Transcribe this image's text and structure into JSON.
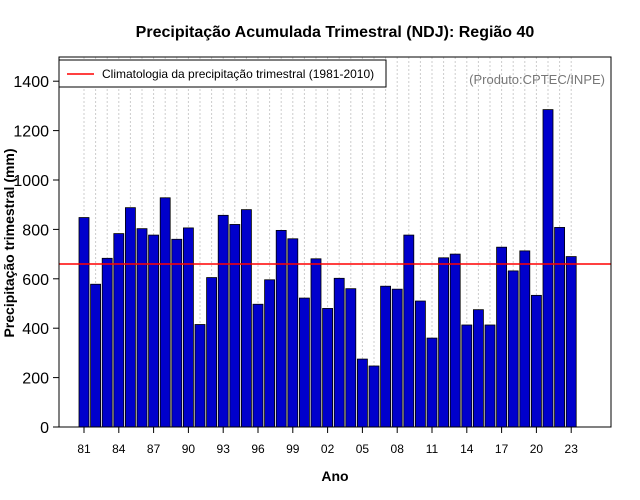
{
  "chart_data": {
    "type": "bar",
    "title": "Precipitação Acumulada Trimestral (NDJ): Região 40",
    "xlabel": "Ano",
    "ylabel": "Precipitação trimestral (mm)",
    "ylim": [
      0,
      1500
    ],
    "yticks": [
      0,
      200,
      400,
      600,
      800,
      1000,
      1200,
      1400
    ],
    "grid": "vertical dotted",
    "categories": [
      "81",
      "82",
      "83",
      "84",
      "85",
      "86",
      "87",
      "88",
      "89",
      "90",
      "91",
      "92",
      "93",
      "94",
      "95",
      "96",
      "97",
      "98",
      "99",
      "00",
      "01",
      "02",
      "03",
      "04",
      "05",
      "06",
      "07",
      "08",
      "09",
      "10",
      "11",
      "12",
      "13",
      "14",
      "15",
      "16",
      "17",
      "18",
      "19",
      "20",
      "21",
      "22",
      "23"
    ],
    "xtick_labels": [
      "81",
      "84",
      "87",
      "90",
      "93",
      "96",
      "99",
      "02",
      "05",
      "08",
      "11",
      "14",
      "17",
      "20",
      "23"
    ],
    "values": [
      848,
      578,
      683,
      783,
      888,
      803,
      777,
      928,
      760,
      806,
      415,
      605,
      857,
      820,
      880,
      497,
      596,
      796,
      762,
      522,
      681,
      480,
      602,
      560,
      275,
      247,
      570,
      558,
      777,
      510,
      360,
      685,
      700,
      413,
      475,
      413,
      728,
      632,
      713,
      533,
      1285,
      808,
      690
    ],
    "bar_color": "#0000cc",
    "reference_line": {
      "value": 660,
      "color": "#ff0000",
      "label": "Climatologia da precipitação trimestral (1981-2010)"
    },
    "legend": {
      "position": "top-left",
      "entries": [
        "Climatologia da precipitação trimestral (1981-2010)"
      ]
    },
    "annotation": "(Produto:CPTEC/INPE)"
  }
}
